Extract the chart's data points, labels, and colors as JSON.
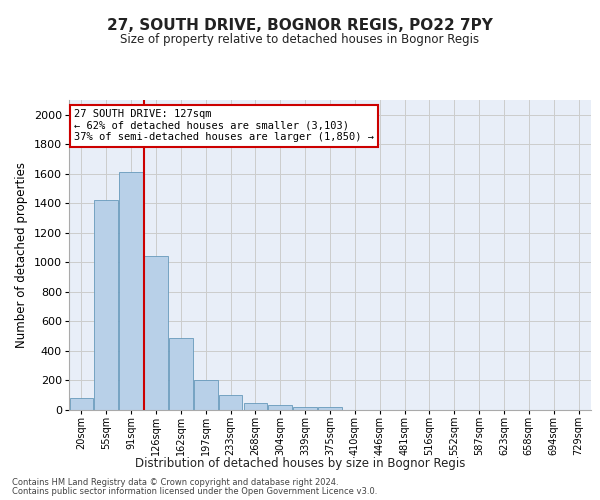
{
  "title": "27, SOUTH DRIVE, BOGNOR REGIS, PO22 7PY",
  "subtitle": "Size of property relative to detached houses in Bognor Regis",
  "xlabel": "Distribution of detached houses by size in Bognor Regis",
  "ylabel": "Number of detached properties",
  "categories": [
    "20sqm",
    "55sqm",
    "91sqm",
    "126sqm",
    "162sqm",
    "197sqm",
    "233sqm",
    "268sqm",
    "304sqm",
    "339sqm",
    "375sqm",
    "410sqm",
    "446sqm",
    "481sqm",
    "516sqm",
    "552sqm",
    "587sqm",
    "623sqm",
    "658sqm",
    "694sqm",
    "729sqm"
  ],
  "values": [
    80,
    1420,
    1610,
    1045,
    490,
    205,
    105,
    45,
    35,
    22,
    18,
    0,
    0,
    0,
    0,
    0,
    0,
    0,
    0,
    0,
    0
  ],
  "bar_color": "#b8d0e8",
  "bar_edge_color": "#6699bb",
  "vline_color": "#cc0000",
  "vline_position": 2.5,
  "annotation_text": "27 SOUTH DRIVE: 127sqm\n← 62% of detached houses are smaller (3,103)\n37% of semi-detached houses are larger (1,850) →",
  "annotation_box_edgecolor": "#cc0000",
  "ylim": [
    0,
    2100
  ],
  "yticks": [
    0,
    200,
    400,
    600,
    800,
    1000,
    1200,
    1400,
    1600,
    1800,
    2000
  ],
  "footer_line1": "Contains HM Land Registry data © Crown copyright and database right 2024.",
  "footer_line2": "Contains public sector information licensed under the Open Government Licence v3.0.",
  "grid_color": "#cccccc",
  "plot_bg_color": "#e8eef8"
}
